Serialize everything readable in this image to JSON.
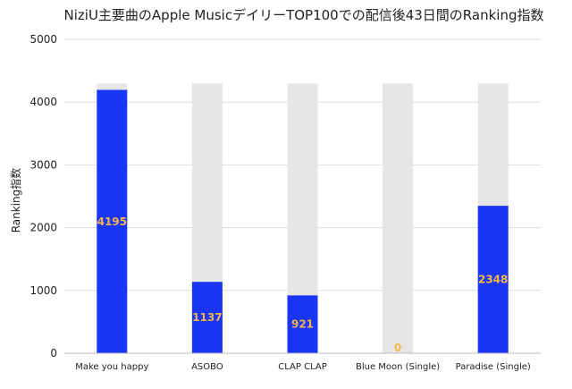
{
  "chart_data": {
    "type": "bar",
    "title": "NiziU主要曲のApple MusicデイリーTOP100での配信後43日間のRanking指数",
    "xlabel": "",
    "ylabel": "Ranking指数",
    "categories": [
      "Make you happy",
      "ASOBO",
      "CLAP CLAP",
      "Blue Moon (Single)",
      "Paradise (Single)"
    ],
    "series": [
      {
        "values": [
          4195,
          1137,
          921,
          0,
          2348
        ]
      }
    ],
    "background_value": 4300,
    "ylim": [
      0,
      5000
    ],
    "yticks": [
      "0",
      "1000",
      "2000",
      "3000",
      "4000",
      "5000"
    ],
    "data_labels": [
      "4195",
      "1137",
      "921",
      "0",
      "2348"
    ],
    "grid": true,
    "legend": "none",
    "colors": {
      "bar": "#1a35f5",
      "background_bar": "#e6e6e6",
      "grid": "#dcdcdc",
      "label": "#f3b64a"
    }
  }
}
